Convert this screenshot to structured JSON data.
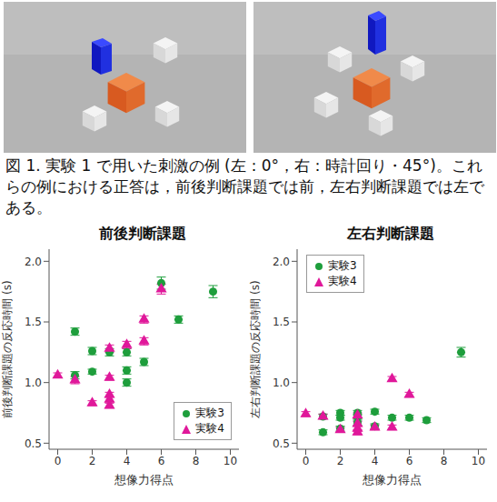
{
  "figure": {
    "caption": "図 1. 実験 1 で用いた刺激の例 (左：0°，右：時計回り・45°)。これらの例における正答は，前後判断課題では前，左右判断課題では左である。"
  },
  "chart_data": [
    {
      "type": "scatter",
      "title": "前後判断課題",
      "x_label": "想像力得点",
      "y_label": "前後判断課題の反応時間 (s)",
      "xlim": [
        -0.5,
        10.5
      ],
      "xticks": [
        0,
        2,
        4,
        6,
        8,
        10
      ],
      "ylim": [
        0.45,
        2.1
      ],
      "yticks": [
        0.5,
        {
          "value": 1,
          "label": "1.0"
        },
        1.5,
        {
          "value": 2,
          "label": "2.0"
        }
      ],
      "grid": false,
      "legend": "lower right",
      "series": [
        {
          "name": "実験3",
          "color": "#1e9e3c",
          "marker": "circle",
          "x": [
            1,
            1,
            2,
            2,
            3,
            4,
            4,
            4,
            5,
            6,
            7,
            9
          ],
          "values": [
            1.42,
            1.06,
            1.26,
            1.09,
            1.25,
            1.25,
            1.1,
            1.0,
            1.17,
            1.82,
            1.52,
            1.75
          ],
          "errors": [
            0.03,
            0.03,
            0.03,
            0.02,
            0.03,
            0.03,
            0.03,
            0.03,
            0.03,
            0.05,
            0.03,
            0.05
          ]
        },
        {
          "name": "実験4",
          "color": "#e0189a",
          "marker": "triangle",
          "x": [
            0,
            1,
            2,
            3,
            3,
            3,
            3,
            3,
            4,
            5,
            5,
            6
          ],
          "values": [
            1.06,
            1.02,
            0.83,
            1.28,
            1.04,
            0.9,
            0.86,
            0.81,
            1.31,
            1.52,
            1.34,
            1.77
          ],
          "errors": [
            0.02,
            0.03,
            0.02,
            0.03,
            0.02,
            0.02,
            0.02,
            0.02,
            0.03,
            0.03,
            0.03,
            0.04
          ]
        }
      ]
    },
    {
      "type": "scatter",
      "title": "左右判断課題",
      "x_label": "想像力得点",
      "y_label": "左右判断課題の反応時間 (s)",
      "xlim": [
        -0.5,
        10.5
      ],
      "xticks": [
        0,
        2,
        4,
        6,
        8,
        10
      ],
      "ylim": [
        0.45,
        2.1
      ],
      "yticks": [
        0.5,
        {
          "value": 1,
          "label": "1.0"
        },
        1.5,
        {
          "value": 2,
          "label": "2.0"
        }
      ],
      "grid": false,
      "legend": "upper left",
      "series": [
        {
          "name": "実験3",
          "color": "#1e9e3c",
          "marker": "circle",
          "x": [
            1,
            1,
            2,
            2,
            2,
            3,
            3,
            3,
            4,
            4,
            5,
            6,
            7,
            9
          ],
          "values": [
            0.72,
            0.59,
            0.75,
            0.71,
            0.62,
            0.75,
            0.72,
            0.67,
            0.76,
            0.64,
            0.71,
            0.71,
            0.69,
            1.25
          ],
          "errors": [
            0.02,
            0.02,
            0.02,
            0.02,
            0.02,
            0.02,
            0.02,
            0.02,
            0.02,
            0.02,
            0.02,
            0.02,
            0.02,
            0.04
          ]
        },
        {
          "name": "実験4",
          "color": "#e0189a",
          "marker": "triangle",
          "x": [
            0,
            1,
            2,
            3,
            3,
            3,
            3,
            4,
            5,
            5,
            6
          ],
          "values": [
            0.74,
            0.72,
            0.61,
            0.73,
            0.66,
            0.62,
            0.59,
            0.63,
            1.03,
            0.63,
            0.9
          ],
          "errors": [
            0.02,
            0.02,
            0.02,
            0.02,
            0.02,
            0.02,
            0.02,
            0.02,
            0.02,
            0.02,
            0.02
          ]
        }
      ]
    }
  ]
}
